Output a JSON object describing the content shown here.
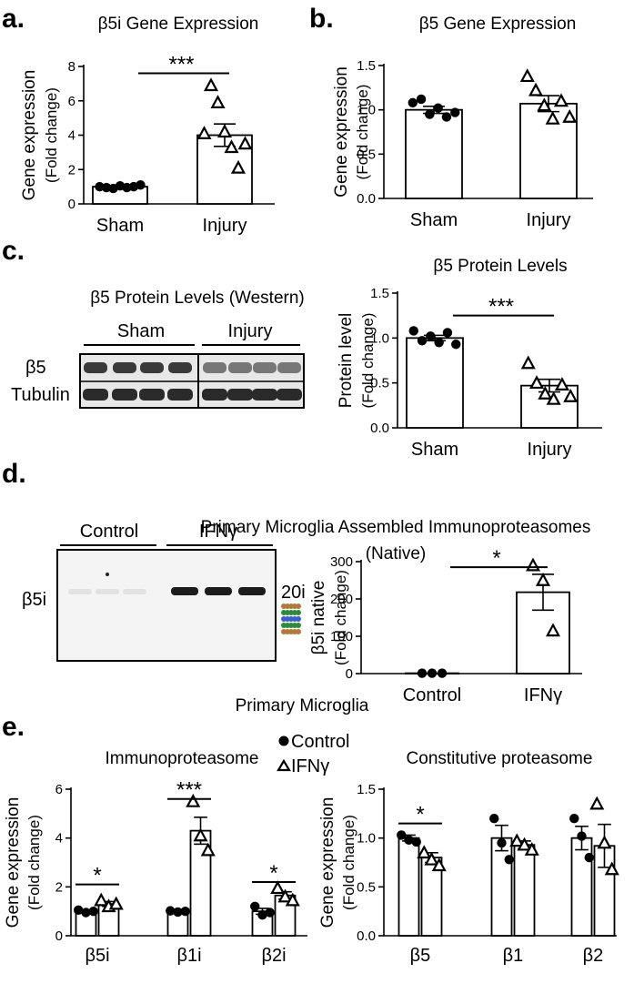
{
  "panel_labels": {
    "a": "a.",
    "b": "b.",
    "c": "c.",
    "d": "d.",
    "e": "e."
  },
  "western_c": {
    "title": "β5 Protein Levels (Western)",
    "groups": [
      "Sham",
      "Injury"
    ],
    "rows": [
      "β5",
      "Tubulin"
    ]
  },
  "blot_d": {
    "title_line1": "Primary Microglia Assembled Immunoproteasomes",
    "title_line2": "(Native)",
    "groups": [
      "Control",
      "IFNγ"
    ],
    "row": "β5i",
    "band_label": "20i"
  },
  "section_e_title": "Primary Microglia",
  "legend_e": {
    "control": "Control",
    "ifng": "IFNγ"
  },
  "colors": {
    "ink": "#000000",
    "bar_fill": "#ffffff",
    "blot_bg": "#f4f4f4"
  },
  "chart_data": [
    {
      "id": "a",
      "type": "bar",
      "title": "β5i Gene Expression",
      "ylabel_line1": "Gene expression",
      "ylabel_line2": "(Fold change)",
      "ylim": [
        0,
        8
      ],
      "yticks": [
        "0",
        "2",
        "4",
        "6",
        "8"
      ],
      "categories": [
        "Sham",
        "Injury"
      ],
      "values": [
        1.0,
        4.0
      ],
      "errors": [
        0.05,
        0.65
      ],
      "points": [
        [
          1.0,
          0.95,
          0.9,
          1.05,
          0.95,
          1.0,
          1.1
        ],
        [
          4.1,
          6.9,
          5.9,
          4.2,
          3.3,
          2.1,
          3.5
        ]
      ],
      "markers": [
        "dot",
        "tri"
      ],
      "significance": [
        {
          "from": 0,
          "to": 1,
          "text": "***",
          "y": 7.6
        }
      ]
    },
    {
      "id": "b",
      "type": "bar",
      "title": "β5 Gene Expression",
      "ylabel_line1": "Gene expression",
      "ylabel_line2": "(Fold change)",
      "ylim": [
        0,
        1.5
      ],
      "yticks": [
        "0.0",
        "0.5",
        "1.0",
        "1.5"
      ],
      "categories": [
        "Sham",
        "Injury"
      ],
      "values": [
        1.0,
        1.07
      ],
      "errors": [
        0.04,
        0.09
      ],
      "points": [
        [
          1.08,
          1.12,
          0.95,
          1.02,
          0.92,
          0.97
        ],
        [
          1.38,
          1.22,
          1.05,
          0.9,
          1.1,
          0.92
        ]
      ],
      "markers": [
        "dot",
        "tri"
      ],
      "significance": []
    },
    {
      "id": "c",
      "type": "bar",
      "title": "β5 Protein Levels",
      "ylabel_line1": "Protein level",
      "ylabel_line2": "(Fold change)",
      "ylim": [
        0,
        1.5
      ],
      "yticks": [
        "0.0",
        "0.5",
        "1.0",
        "1.5"
      ],
      "categories": [
        "Sham",
        "Injury"
      ],
      "values": [
        1.0,
        0.47
      ],
      "errors": [
        0.03,
        0.07
      ],
      "points": [
        [
          1.08,
          0.97,
          1.02,
          0.95,
          1.06,
          0.93
        ],
        [
          0.72,
          0.5,
          0.38,
          0.32,
          0.48,
          0.35
        ]
      ],
      "markers": [
        "dot",
        "tri"
      ],
      "significance": [
        {
          "from": 0,
          "to": 1,
          "text": "***",
          "y": 1.25
        }
      ]
    },
    {
      "id": "d",
      "type": "bar",
      "title": "",
      "ylabel_line1": "β5i native",
      "ylabel_line2": "(Fold change)",
      "ylim": [
        0,
        300
      ],
      "yticks": [
        "0",
        "100",
        "200",
        "300"
      ],
      "categories": [
        "Control",
        "IFNγ"
      ],
      "values": [
        1,
        218
      ],
      "errors": [
        0,
        48
      ],
      "points": [
        [
          1,
          1,
          1
        ],
        [
          290,
          250,
          115
        ]
      ],
      "markers": [
        "dot",
        "tri"
      ],
      "significance": [
        {
          "from": 0,
          "to": 1,
          "text": "*",
          "y": 285
        }
      ]
    },
    {
      "id": "e1",
      "type": "bar",
      "title": "Immunoproteasome",
      "ylabel_line1": "Gene expression",
      "ylabel_line2": "(Fold change)",
      "ylim": [
        0,
        6
      ],
      "yticks": [
        "0",
        "2",
        "4",
        "6"
      ],
      "categories": [
        "β5i",
        "β1i",
        "β2i"
      ],
      "series": [
        {
          "name": "Control",
          "values": [
            1.0,
            1.0,
            1.0
          ],
          "errors": [
            0.06,
            0.05,
            0.12
          ],
          "points": [
            [
              1.05,
              0.95,
              1.0
            ],
            [
              1.02,
              0.97,
              1.0
            ],
            [
              1.2,
              0.85,
              0.95
            ]
          ]
        },
        {
          "name": "IFNγ",
          "values": [
            1.3,
            4.3,
            1.65
          ],
          "errors": [
            0.1,
            0.55,
            0.15
          ],
          "points": [
            [
              1.45,
              1.2,
              1.3
            ],
            [
              5.5,
              4.1,
              3.5
            ],
            [
              1.95,
              1.6,
              1.45
            ]
          ]
        }
      ],
      "significance": [
        {
          "cat": 0,
          "text": "*",
          "y": 2.1
        },
        {
          "cat": 1,
          "text": "***",
          "y": 5.6
        },
        {
          "cat": 2,
          "text": "*",
          "y": 2.2
        }
      ]
    },
    {
      "id": "e2",
      "type": "bar",
      "title": "Constitutive proteasome",
      "ylabel_line1": "Gene expression",
      "ylabel_line2": "(Fold change)",
      "ylim": [
        0,
        1.5
      ],
      "yticks": [
        "0.0",
        "0.5",
        "1.0",
        "1.5"
      ],
      "categories": [
        "β5",
        "β1",
        "β2"
      ],
      "series": [
        {
          "name": "Control",
          "values": [
            1.0,
            1.0,
            1.0
          ],
          "errors": [
            0.03,
            0.13,
            0.12
          ],
          "points": [
            [
              1.03,
              0.98,
              0.96
            ],
            [
              1.2,
              0.95,
              0.78
            ],
            [
              1.2,
              1.02,
              0.8
            ]
          ]
        },
        {
          "name": "IFNγ",
          "values": [
            0.8,
            0.93,
            0.92
          ],
          "errors": [
            0.05,
            0.04,
            0.22
          ],
          "points": [
            [
              0.85,
              0.78,
              0.72
            ],
            [
              0.97,
              0.93,
              0.88
            ],
            [
              1.35,
              0.95,
              0.68
            ]
          ]
        }
      ],
      "significance": [
        {
          "cat": 0,
          "text": "*",
          "y": 1.15
        }
      ]
    }
  ]
}
